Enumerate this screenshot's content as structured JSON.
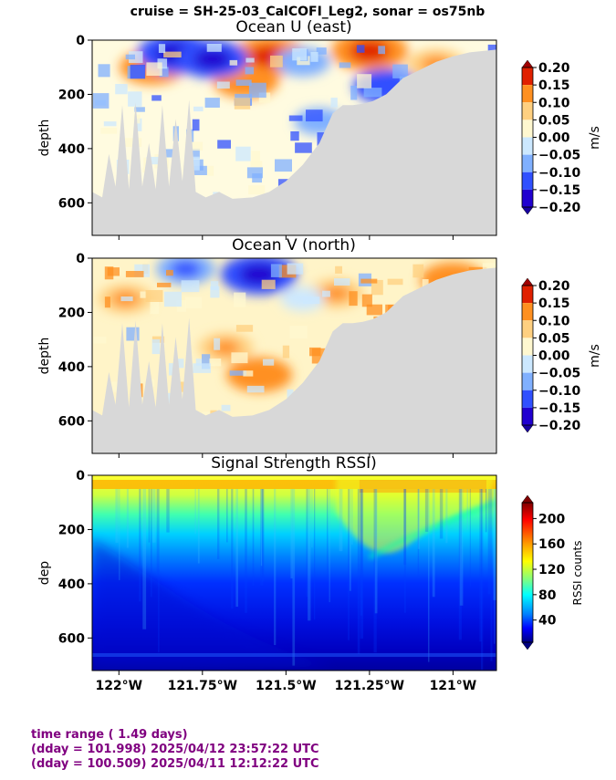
{
  "suptitle": "cruise = SH-25-03_CalCOFI_Leg2,  sonar = os75nb",
  "footer": {
    "line1": "time range ( 1.49 days)",
    "line2": "(dday = 101.998) 2025/04/12 23:57:22 UTC",
    "line3": "(dday = 100.509) 2025/04/11 12:12:22 UTC"
  },
  "chart_data": [
    {
      "type": "heatmap",
      "title": "Ocean U (east)",
      "ylabel": "depth",
      "ylim": [
        720,
        0
      ],
      "yticks": [
        "0",
        "200",
        "400",
        "600"
      ],
      "xlim": [
        -122.08,
        -120.87
      ],
      "colorbar": {
        "label": "m/s",
        "range": [
          -0.2,
          0.2
        ],
        "ticks": [
          "0.20",
          "0.15",
          "0.10",
          "0.05",
          "0.00",
          "−0.05",
          "−0.10",
          "−0.15",
          "−0.20"
        ]
      },
      "bottom_profile": [
        [
          -122.08,
          560
        ],
        [
          -122.05,
          580
        ],
        [
          -122.03,
          420
        ],
        [
          -122.01,
          540
        ],
        [
          -121.99,
          240
        ],
        [
          -121.97,
          550
        ],
        [
          -121.95,
          230
        ],
        [
          -121.93,
          540
        ],
        [
          -121.91,
          380
        ],
        [
          -121.89,
          550
        ],
        [
          -121.87,
          240
        ],
        [
          -121.85,
          540
        ],
        [
          -121.83,
          290
        ],
        [
          -121.81,
          520
        ],
        [
          -121.79,
          220
        ],
        [
          -121.77,
          560
        ],
        [
          -121.74,
          580
        ],
        [
          -121.7,
          560
        ],
        [
          -121.66,
          585
        ],
        [
          -121.6,
          580
        ],
        [
          -121.55,
          560
        ],
        [
          -121.5,
          520
        ],
        [
          -121.45,
          460
        ],
        [
          -121.4,
          380
        ],
        [
          -121.36,
          270
        ],
        [
          -121.33,
          240
        ],
        [
          -121.3,
          240
        ],
        [
          -121.27,
          235
        ],
        [
          -121.24,
          225
        ],
        [
          -121.2,
          200
        ],
        [
          -121.15,
          140
        ],
        [
          -121.1,
          110
        ],
        [
          -121.05,
          80
        ],
        [
          -121.0,
          60
        ],
        [
          -120.95,
          45
        ],
        [
          -120.87,
          35
        ]
      ],
      "features": [
        {
          "lon": -121.55,
          "depth": 60,
          "value": 0.2
        },
        {
          "lon": -121.25,
          "depth": 40,
          "value": 0.2
        },
        {
          "lon": -121.62,
          "depth": 150,
          "value": 0.15
        },
        {
          "lon": -121.9,
          "depth": 100,
          "value": 0.15
        },
        {
          "lon": -121.05,
          "depth": 90,
          "value": 0.12
        },
        {
          "lon": -121.83,
          "depth": 50,
          "value": -0.2
        },
        {
          "lon": -121.72,
          "depth": 70,
          "value": -0.18
        },
        {
          "lon": -121.2,
          "depth": 170,
          "value": -0.15
        },
        {
          "lon": -121.45,
          "depth": 80,
          "value": -0.1
        },
        {
          "lon": -121.4,
          "depth": 300,
          "value": -0.08
        }
      ]
    },
    {
      "type": "heatmap",
      "title": "Ocean V (north)",
      "ylabel": "depth",
      "ylim": [
        720,
        0
      ],
      "yticks": [
        "0",
        "200",
        "400",
        "600"
      ],
      "xlim": [
        -122.08,
        -120.87
      ],
      "colorbar": {
        "label": "m/s",
        "range": [
          -0.2,
          0.2
        ],
        "ticks": [
          "0.20",
          "0.15",
          "0.10",
          "0.05",
          "0.00",
          "−0.05",
          "−0.10",
          "−0.15",
          "−0.20"
        ]
      },
      "features": [
        {
          "lon": -121.58,
          "depth": 60,
          "value": -0.2
        },
        {
          "lon": -121.8,
          "depth": 40,
          "value": -0.12
        },
        {
          "lon": -121.58,
          "depth": 430,
          "value": 0.15
        },
        {
          "lon": -121.68,
          "depth": 330,
          "value": 0.1
        },
        {
          "lon": -121.35,
          "depth": 130,
          "value": 0.1
        },
        {
          "lon": -121.98,
          "depth": 150,
          "value": 0.1
        },
        {
          "lon": -121.0,
          "depth": 80,
          "value": 0.15
        },
        {
          "lon": -121.45,
          "depth": 150,
          "value": -0.05
        }
      ]
    },
    {
      "type": "heatmap",
      "title": "Signal Strength RSSI)",
      "ylabel": "dep",
      "ylim": [
        720,
        0
      ],
      "yticks": [
        "0",
        "200",
        "400",
        "600"
      ],
      "xlim": [
        -122.08,
        -120.87
      ],
      "xticks": [
        {
          "value": -122.0,
          "label": "122°W"
        },
        {
          "value": -121.75,
          "label": "121.75°W"
        },
        {
          "value": -121.5,
          "label": "121.5°W"
        },
        {
          "value": -121.25,
          "label": "121.25°W"
        },
        {
          "value": -121.0,
          "label": "121°W"
        }
      ],
      "colorbar": {
        "label": "RSSI counts",
        "range": [
          5,
          225
        ],
        "ticks": [
          "200",
          "160",
          "120",
          "80",
          "40"
        ]
      }
    }
  ]
}
